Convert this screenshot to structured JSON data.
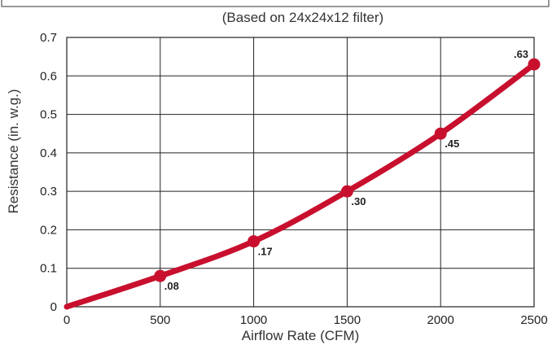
{
  "chart_data": {
    "type": "line",
    "subtitle": "(Based on 24x24x12 filter)",
    "xlabel": "Airflow Rate (CFM)",
    "ylabel": "Resistance (in. w.g.)",
    "xlim": [
      0,
      2500
    ],
    "ylim": [
      0,
      0.7
    ],
    "xticks": [
      0,
      500,
      1000,
      1500,
      2000,
      2500
    ],
    "xtick_labels": [
      "0",
      "500",
      "1000",
      "1500",
      "2000",
      "2500"
    ],
    "yticks": [
      0,
      0.1,
      0.2,
      0.3,
      0.4,
      0.5,
      0.6,
      0.7
    ],
    "ytick_labels": [
      "0",
      "0.1",
      "0.2",
      "0.3",
      "0.4",
      "0.5",
      "0.6",
      "0.7"
    ],
    "grid": true,
    "series": [
      {
        "x": [
          0,
          500,
          1000,
          1500,
          2000,
          2500
        ],
        "y": [
          0,
          0.08,
          0.17,
          0.3,
          0.45,
          0.63
        ],
        "markers_at": [
          500,
          1000,
          1500,
          2000,
          2500
        ],
        "labels": [
          "",
          ".08",
          ".17",
          ".30",
          ".45",
          ".63"
        ],
        "color": "#c8102e"
      }
    ]
  }
}
